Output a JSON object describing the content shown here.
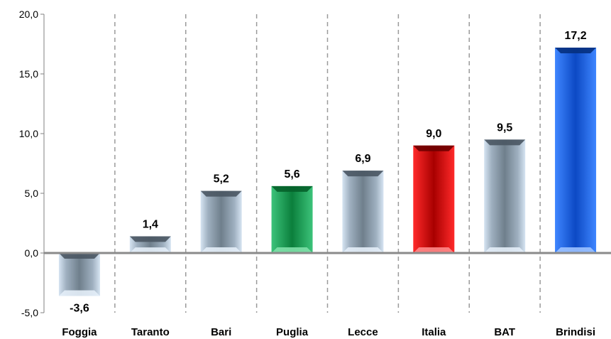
{
  "chart_data": {
    "type": "bar",
    "categories": [
      "Foggia",
      "Taranto",
      "Bari",
      "Puglia",
      "Lecce",
      "Italia",
      "BAT",
      "Brindisi"
    ],
    "values": [
      -3.6,
      1.4,
      5.2,
      5.6,
      6.9,
      9.0,
      9.5,
      17.2
    ],
    "value_labels": [
      "-3,6",
      "1,4",
      "5,2",
      "5,6",
      "6,9",
      "9,0",
      "9,5",
      "17,2"
    ],
    "bar_colors": [
      "#8c9aa6",
      "#8c9aa6",
      "#8c9aa6",
      "#1aa24e",
      "#8c9aa6",
      "#d40000",
      "#8c9aa6",
      "#1a5fd8"
    ],
    "yticks": [
      {
        "value": -5,
        "label": "-5,0"
      },
      {
        "value": 0,
        "label": "0,0"
      },
      {
        "value": 5,
        "label": "5,0"
      },
      {
        "value": 10,
        "label": "10,0"
      },
      {
        "value": 15,
        "label": "15,0"
      },
      {
        "value": 20,
        "label": "20,0"
      }
    ],
    "ylim": [
      -5,
      20
    ],
    "title": "",
    "xlabel": "",
    "ylabel": "",
    "grid": "vertical dashed separators",
    "legend": "none"
  }
}
